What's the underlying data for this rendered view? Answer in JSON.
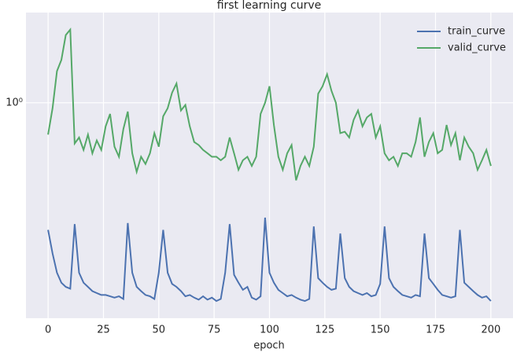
{
  "chart_data": {
    "type": "line",
    "title": "first learning curve",
    "x_label": "epoch",
    "x": [
      0,
      2,
      4,
      6,
      8,
      10,
      12,
      14,
      16,
      18,
      20,
      22,
      24,
      26,
      28,
      30,
      32,
      34,
      36,
      38,
      40,
      42,
      44,
      46,
      48,
      50,
      52,
      54,
      56,
      58,
      60,
      62,
      64,
      66,
      68,
      70,
      72,
      74,
      76,
      78,
      80,
      82,
      84,
      86,
      88,
      90,
      92,
      94,
      96,
      98,
      100,
      102,
      104,
      106,
      108,
      110,
      112,
      114,
      116,
      118,
      120,
      122,
      124,
      126,
      128,
      130,
      132,
      134,
      136,
      138,
      140,
      142,
      144,
      146,
      148,
      150,
      152,
      154,
      156,
      158,
      160,
      162,
      164,
      166,
      168,
      170,
      172,
      174,
      176,
      178,
      180,
      182,
      184,
      186,
      188,
      190,
      192,
      194,
      196,
      198,
      200
    ],
    "series": [
      {
        "name": "train_curve",
        "color": "#4c72b0",
        "values": [
          0.3,
          0.24,
          0.2,
          0.182,
          0.175,
          0.172,
          0.317,
          0.2,
          0.182,
          0.175,
          0.168,
          0.165,
          0.162,
          0.162,
          0.16,
          0.158,
          0.16,
          0.156,
          0.32,
          0.2,
          0.175,
          0.168,
          0.162,
          0.16,
          0.156,
          0.2,
          0.3,
          0.2,
          0.18,
          0.175,
          0.168,
          0.16,
          0.162,
          0.158,
          0.155,
          0.16,
          0.155,
          0.158,
          0.153,
          0.156,
          0.2,
          0.317,
          0.196,
          0.182,
          0.17,
          0.175,
          0.158,
          0.155,
          0.16,
          0.337,
          0.2,
          0.182,
          0.17,
          0.165,
          0.16,
          0.162,
          0.158,
          0.155,
          0.153,
          0.156,
          0.31,
          0.19,
          0.182,
          0.175,
          0.17,
          0.172,
          0.29,
          0.19,
          0.175,
          0.168,
          0.165,
          0.162,
          0.165,
          0.16,
          0.162,
          0.18,
          0.31,
          0.19,
          0.175,
          0.168,
          0.162,
          0.16,
          0.158,
          0.162,
          0.16,
          0.29,
          0.19,
          0.18,
          0.17,
          0.162,
          0.16,
          0.158,
          0.16,
          0.3,
          0.182,
          0.175,
          0.168,
          0.162,
          0.158,
          0.16,
          0.153
        ]
      },
      {
        "name": "valid_curve",
        "color": "#55a868",
        "values": [
          0.74,
          0.95,
          1.35,
          1.5,
          1.9,
          2.0,
          0.68,
          0.72,
          0.64,
          0.74,
          0.62,
          0.7,
          0.64,
          0.8,
          0.9,
          0.66,
          0.6,
          0.78,
          0.92,
          0.62,
          0.52,
          0.6,
          0.56,
          0.62,
          0.75,
          0.66,
          0.88,
          0.95,
          1.1,
          1.2,
          0.93,
          0.98,
          0.8,
          0.69,
          0.67,
          0.64,
          0.62,
          0.6,
          0.6,
          0.58,
          0.6,
          0.72,
          0.62,
          0.53,
          0.58,
          0.6,
          0.55,
          0.6,
          0.9,
          1.0,
          1.17,
          0.81,
          0.6,
          0.53,
          0.62,
          0.67,
          0.48,
          0.55,
          0.6,
          0.55,
          0.66,
          1.09,
          1.17,
          1.31,
          1.12,
          1.0,
          0.75,
          0.76,
          0.72,
          0.85,
          0.93,
          0.8,
          0.87,
          0.9,
          0.72,
          0.8,
          0.62,
          0.58,
          0.6,
          0.55,
          0.62,
          0.62,
          0.6,
          0.69,
          0.87,
          0.6,
          0.69,
          0.75,
          0.62,
          0.64,
          0.81,
          0.67,
          0.75,
          0.58,
          0.72,
          0.66,
          0.62,
          0.53,
          0.58,
          0.64,
          0.55
        ]
      }
    ],
    "xlim": [
      -10,
      210
    ],
    "xticks": [
      0,
      25,
      50,
      75,
      100,
      125,
      150,
      175,
      200
    ],
    "ylim": [
      0.13,
      2.35
    ],
    "yticks": [
      {
        "value": 1,
        "label": "10⁰"
      }
    ],
    "log_y": true,
    "grid": true,
    "legend": "upper right"
  }
}
